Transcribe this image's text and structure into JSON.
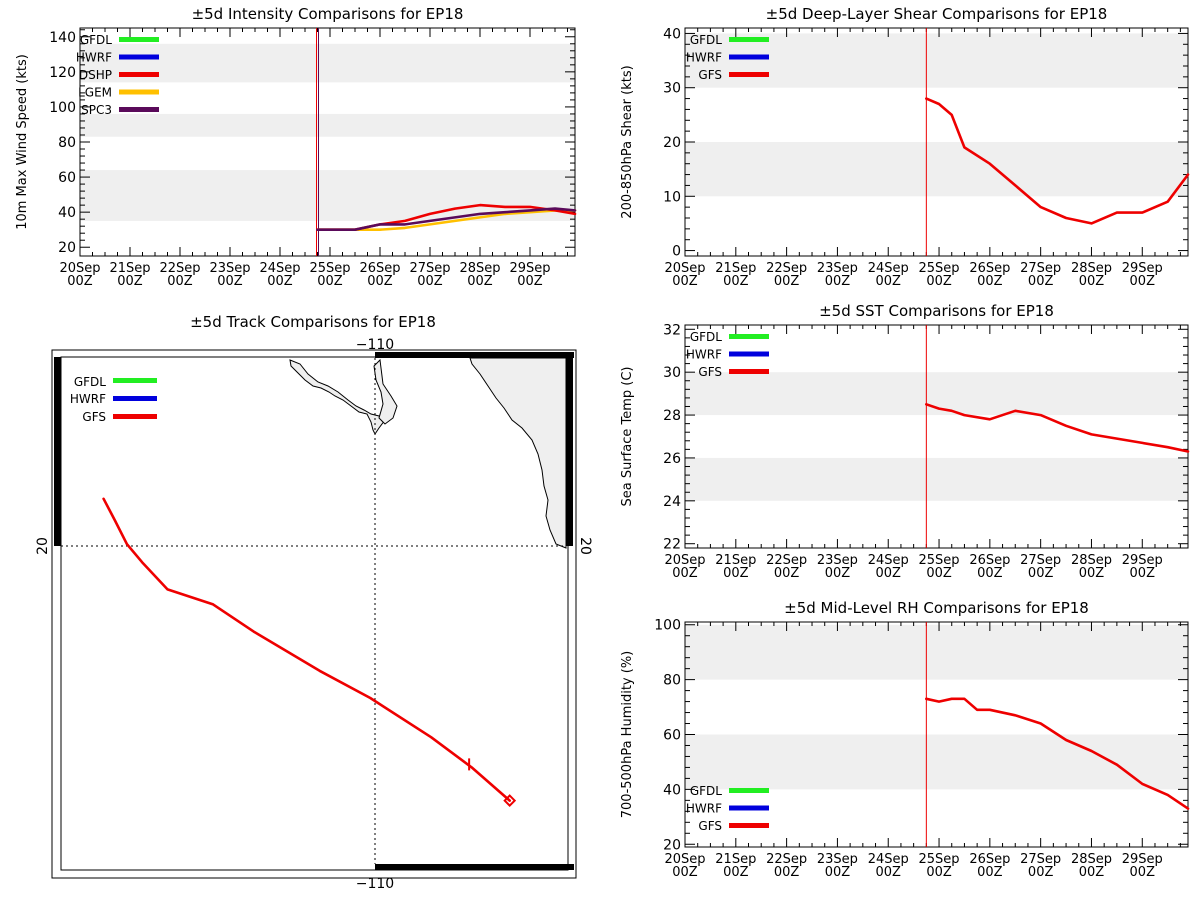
{
  "chart_data": [
    {
      "id": "intensity",
      "type": "line",
      "title": "±5d Intensity Comparisons for EP18",
      "xlabel": "",
      "ylabel": "10m Max Wind Speed (kts)",
      "xlim": [
        0,
        9.9
      ],
      "ylim": [
        15,
        145
      ],
      "yticks": [
        20,
        40,
        60,
        80,
        100,
        120,
        140
      ],
      "bands": [
        [
          35,
          64
        ],
        [
          83,
          96
        ],
        [
          114,
          136
        ]
      ],
      "xtick_top": [
        "20Sep",
        "21Sep",
        "22Sep",
        "23Sep",
        "24Sep",
        "25Sep",
        "26Sep",
        "27Sep",
        "28Sep",
        "29Sep"
      ],
      "xtick_bottom": [
        "00Z",
        "00Z",
        "00Z",
        "00Z",
        "00Z",
        "00Z",
        "00Z",
        "00Z",
        "00Z",
        "00Z"
      ],
      "vline": 4.75,
      "legend": [
        "GFDL",
        "HWRF",
        "DSHP",
        "LGEM",
        "SPC3"
      ],
      "series": [
        {
          "name": "GFDL",
          "color": "#22ee22",
          "x": [],
          "y": []
        },
        {
          "name": "HWRF",
          "color": "#0000dd",
          "x": [],
          "y": []
        },
        {
          "name": "LGEM",
          "color": "#ffc000",
          "x": [
            4.75,
            5.25,
            5.5,
            6.0,
            6.5,
            7.0,
            7.5,
            8.0,
            8.5,
            9.0,
            9.5,
            9.9
          ],
          "y": [
            30,
            30,
            30,
            30,
            31,
            33,
            35,
            37,
            39,
            40,
            41,
            41
          ]
        },
        {
          "name": "DSHP",
          "color": "#ee0000",
          "x": [
            4.75,
            5.25,
            5.5,
            6.0,
            6.5,
            7.0,
            7.5,
            8.0,
            8.5,
            9.0,
            9.5,
            9.9
          ],
          "y": [
            30,
            30,
            30,
            33,
            35,
            39,
            42,
            44,
            43,
            43,
            41,
            39
          ]
        },
        {
          "name": "SPC3",
          "color": "#5a0a5a",
          "x": [
            4.75,
            5.25,
            5.5,
            6.0,
            6.5,
            7.0,
            7.5,
            8.0,
            8.5,
            9.0,
            9.5,
            9.9
          ],
          "y": [
            30,
            30,
            30,
            33,
            33,
            35,
            37,
            39,
            40,
            41,
            42,
            41
          ]
        }
      ]
    },
    {
      "id": "shear",
      "type": "line",
      "title": "±5d Deep-Layer Shear Comparisons for EP18",
      "xlabel": "",
      "ylabel": "200-850hPa Shear (kts)",
      "xlim": [
        0,
        9.9
      ],
      "ylim": [
        -1,
        41
      ],
      "yticks": [
        0,
        10,
        20,
        30,
        40
      ],
      "bands": [
        [
          10,
          20
        ],
        [
          30,
          40
        ]
      ],
      "xtick_top": [
        "20Sep",
        "21Sep",
        "22Sep",
        "23Sep",
        "24Sep",
        "25Sep",
        "26Sep",
        "27Sep",
        "28Sep",
        "29Sep"
      ],
      "xtick_bottom": [
        "00Z",
        "00Z",
        "00Z",
        "00Z",
        "00Z",
        "00Z",
        "00Z",
        "00Z",
        "00Z",
        "00Z"
      ],
      "vline": 4.75,
      "legend": [
        "GFDL",
        "HWRF",
        "GFS"
      ],
      "series": [
        {
          "name": "GFDL",
          "color": "#22ee22",
          "x": [],
          "y": []
        },
        {
          "name": "HWRF",
          "color": "#0000dd",
          "x": [],
          "y": []
        },
        {
          "name": "GFS",
          "color": "#ee0000",
          "x": [
            4.75,
            5.0,
            5.25,
            5.5,
            6.0,
            6.5,
            7.0,
            7.5,
            8.0,
            8.5,
            9.0,
            9.5,
            9.9
          ],
          "y": [
            28,
            27,
            25,
            19,
            16,
            12,
            8,
            6,
            5,
            7,
            7,
            9,
            14
          ]
        }
      ]
    },
    {
      "id": "sst",
      "type": "line",
      "title": "±5d SST Comparisons for EP18",
      "xlabel": "",
      "ylabel": "Sea Surface Temp (C)",
      "xlim": [
        0,
        9.9
      ],
      "ylim": [
        21.8,
        32.2
      ],
      "yticks": [
        22,
        24,
        26,
        28,
        30,
        32
      ],
      "bands": [
        [
          24,
          26
        ],
        [
          28,
          30
        ]
      ],
      "xtick_top": [
        "20Sep",
        "21Sep",
        "22Sep",
        "23Sep",
        "24Sep",
        "25Sep",
        "26Sep",
        "27Sep",
        "28Sep",
        "29Sep"
      ],
      "xtick_bottom": [
        "00Z",
        "00Z",
        "00Z",
        "00Z",
        "00Z",
        "00Z",
        "00Z",
        "00Z",
        "00Z",
        "00Z"
      ],
      "vline": 4.75,
      "legend": [
        "GFDL",
        "HWRF",
        "GFS"
      ],
      "series": [
        {
          "name": "GFDL",
          "color": "#22ee22",
          "x": [],
          "y": []
        },
        {
          "name": "HWRF",
          "color": "#0000dd",
          "x": [],
          "y": []
        },
        {
          "name": "GFS",
          "color": "#ee0000",
          "x": [
            4.75,
            5.0,
            5.25,
            5.5,
            6.0,
            6.5,
            7.0,
            7.5,
            8.0,
            8.5,
            9.0,
            9.5,
            9.9
          ],
          "y": [
            28.5,
            28.3,
            28.2,
            28.0,
            27.8,
            28.2,
            28.0,
            27.5,
            27.1,
            26.9,
            26.7,
            26.5,
            26.3
          ]
        }
      ]
    },
    {
      "id": "rh",
      "type": "line",
      "title": "±5d Mid-Level RH Comparisons for EP18",
      "xlabel": "",
      "ylabel": "700-500hPa Humidity (%)",
      "xlim": [
        0,
        9.9
      ],
      "ylim": [
        19,
        101
      ],
      "yticks": [
        20,
        40,
        60,
        80,
        100
      ],
      "bands": [
        [
          40,
          60
        ],
        [
          80,
          100
        ]
      ],
      "xtick_top": [
        "20Sep",
        "21Sep",
        "22Sep",
        "23Sep",
        "24Sep",
        "25Sep",
        "26Sep",
        "27Sep",
        "28Sep",
        "29Sep"
      ],
      "xtick_bottom": [
        "00Z",
        "00Z",
        "00Z",
        "00Z",
        "00Z",
        "00Z",
        "00Z",
        "00Z",
        "00Z",
        "00Z"
      ],
      "vline": 4.75,
      "legend": [
        "GFDL",
        "HWRF",
        "GFS"
      ],
      "series": [
        {
          "name": "GFDL",
          "color": "#22ee22",
          "x": [],
          "y": []
        },
        {
          "name": "HWRF",
          "color": "#0000dd",
          "x": [],
          "y": []
        },
        {
          "name": "GFS",
          "color": "#ee0000",
          "x": [
            4.75,
            5.0,
            5.25,
            5.5,
            5.75,
            6.0,
            6.5,
            7.0,
            7.5,
            8.0,
            8.5,
            9.0,
            9.5,
            9.9
          ],
          "y": [
            73,
            72,
            73,
            73,
            69,
            69,
            67,
            64,
            58,
            54,
            49,
            42,
            38,
            33
          ]
        }
      ]
    },
    {
      "id": "track",
      "type": "scatter",
      "title": "±5d Track Comparisons for EP18",
      "xlabel": "",
      "ylabel": "",
      "xlim": [
        -116,
        -106
      ],
      "ylim": [
        10,
        27
      ],
      "lon_label": "−110",
      "lat_label": "20",
      "graticule_lon": -110,
      "graticule_lat": 20,
      "legend": [
        "GFDL",
        "HWRF",
        "GFS"
      ],
      "series": [
        {
          "name": "GFDL",
          "color": "#22ee22",
          "lon": [],
          "lat": []
        },
        {
          "name": "HWRF",
          "color": "#0000dd",
          "lon": [],
          "lat": []
        },
        {
          "name": "GFS",
          "color": "#ee0000",
          "lon": [
            -115.16,
            -114.94,
            -114.7,
            -114.4,
            -113.9,
            -113.0,
            -112.2,
            -110.9,
            -109.9,
            -108.7,
            -107.9,
            -107.15
          ],
          "lat": [
            22.3,
            21.6,
            20.8,
            20.2,
            19.3,
            18.8,
            17.9,
            16.6,
            15.7,
            14.4,
            13.4,
            12.3
          ]
        }
      ],
      "start_marker": {
        "lon": -107.15,
        "lat": 12.3,
        "shape": "diamond"
      },
      "tick_marker": {
        "lon": -107.95,
        "lat": 13.5
      }
    }
  ]
}
